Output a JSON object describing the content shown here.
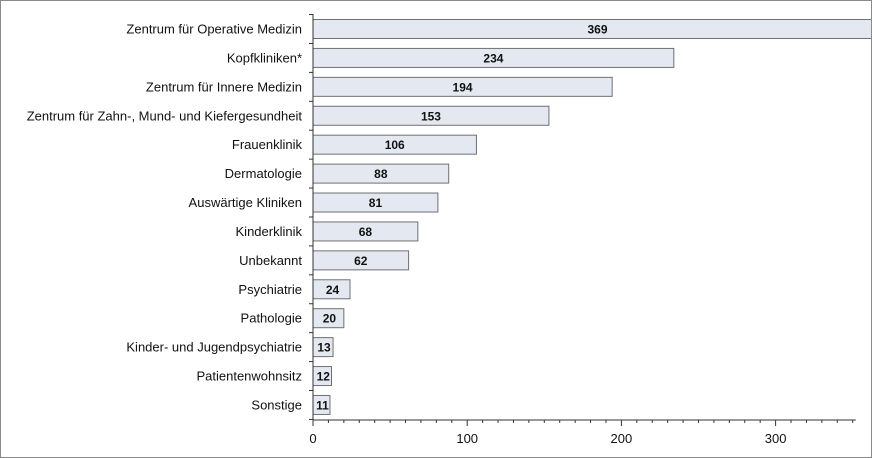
{
  "chart_data": {
    "type": "bar",
    "orientation": "horizontal",
    "categories": [
      "Zentrum für Operative Medizin",
      "Kopfkliniken*",
      "Zentrum für Innere Medizin",
      "Zentrum für Zahn-, Mund- und Kiefergesundheit",
      "Frauenklinik",
      "Dermatologie",
      "Auswärtige Kliniken",
      "Kinderklinik",
      "Unbekannt",
      "Psychiatrie",
      "Pathologie",
      "Kinder- und Jugendpsychiatrie",
      "Patientenwohnsitz",
      "Sonstige"
    ],
    "values": [
      369,
      234,
      194,
      153,
      106,
      88,
      81,
      68,
      62,
      24,
      20,
      13,
      12,
      11
    ],
    "data_labels": [
      "369",
      "234",
      "194",
      "153",
      "106",
      "88",
      "81",
      "68",
      "62",
      "24",
      "20",
      "13",
      "12",
      "11"
    ],
    "xticks": [
      0,
      100,
      200,
      300
    ],
    "xtick_labels": [
      "0",
      "100",
      "200",
      "300"
    ],
    "xlim": [
      0,
      352
    ],
    "title": "",
    "xlabel": "",
    "ylabel": "",
    "grid": false,
    "legend": "none",
    "colors": {
      "bar_fill": "#e4e9f1",
      "bar_stroke": "#707070",
      "axis": "#333333",
      "frame": "#8a8a8a"
    }
  }
}
